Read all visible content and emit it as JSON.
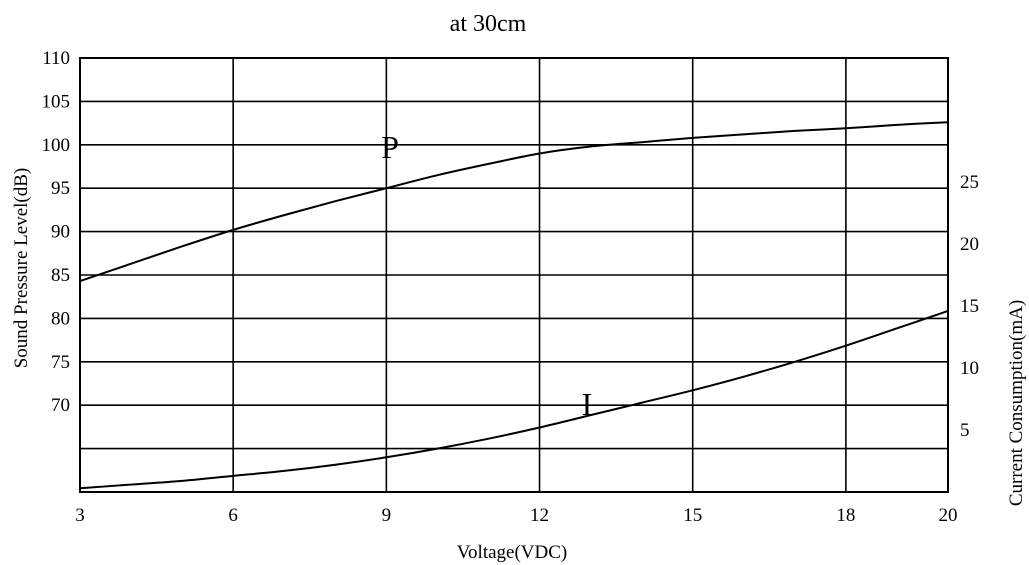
{
  "chart_data": {
    "type": "line",
    "title": "at 30cm",
    "xlabel": "Voltage(VDC)",
    "ylabel_left": "Sound Pressure Level(dB)",
    "ylabel_right": "Current Consumption(mA)",
    "x_ticks": [
      3,
      6,
      9,
      12,
      15,
      18,
      20
    ],
    "xlim": [
      3,
      20
    ],
    "y_left_ticks": [
      70,
      75,
      80,
      85,
      90,
      95,
      100,
      105,
      110
    ],
    "ylim_left": [
      60,
      110
    ],
    "y_right_ticks": [
      5,
      10,
      15,
      20,
      25
    ],
    "ylim_right": [
      0,
      35
    ],
    "grid": true,
    "series": [
      {
        "name": "P",
        "axis": "left",
        "x": [
          3,
          4,
          5,
          6,
          7,
          8,
          9,
          10,
          11,
          12,
          13,
          14,
          15,
          16,
          17,
          18,
          19,
          20
        ],
        "values": [
          84.3,
          86.3,
          88.3,
          90.2,
          91.9,
          93.5,
          95.0,
          96.5,
          97.8,
          99.0,
          99.8,
          100.3,
          100.8,
          101.2,
          101.6,
          101.9,
          102.3,
          102.6
        ]
      },
      {
        "name": "I",
        "axis": "right",
        "x": [
          3,
          4,
          5,
          6,
          7,
          8,
          9,
          10,
          11,
          12,
          13,
          14,
          15,
          16,
          17,
          18,
          19,
          20
        ],
        "values": [
          0.3,
          0.6,
          0.9,
          1.3,
          1.7,
          2.2,
          2.8,
          3.5,
          4.3,
          5.2,
          6.2,
          7.2,
          8.2,
          9.3,
          10.5,
          11.8,
          13.2,
          14.6
        ]
      }
    ]
  }
}
